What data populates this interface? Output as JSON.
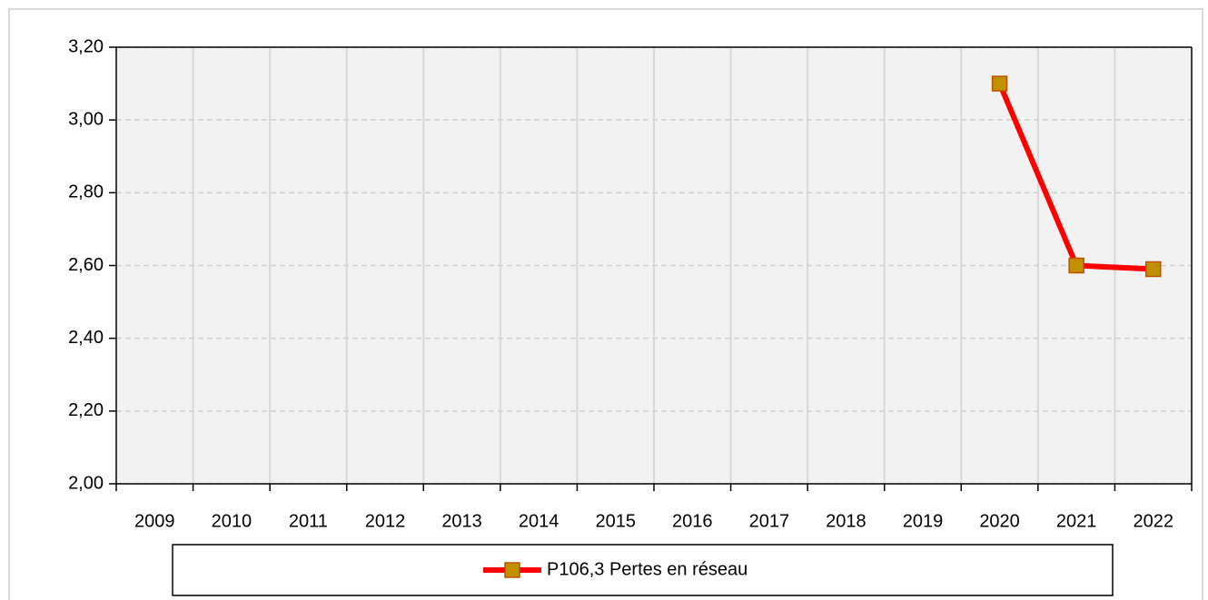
{
  "chart_data": {
    "type": "line",
    "categories": [
      "2009",
      "2010",
      "2011",
      "2012",
      "2013",
      "2014",
      "2015",
      "2016",
      "2017",
      "2018",
      "2019",
      "2020",
      "2021",
      "2022"
    ],
    "series": [
      {
        "name": "P106,3 Pertes en réseau",
        "color": "#ff0000",
        "marker_color": "#c09000",
        "values": [
          null,
          null,
          null,
          null,
          null,
          null,
          null,
          null,
          null,
          null,
          null,
          3.1,
          2.6,
          2.59
        ]
      }
    ],
    "ylim": [
      2.0,
      3.2
    ],
    "yticks": [
      {
        "value": 2.0,
        "label": "2,00"
      },
      {
        "value": 2.2,
        "label": "2,20"
      },
      {
        "value": 2.4,
        "label": "2,40"
      },
      {
        "value": 2.6,
        "label": "2,60"
      },
      {
        "value": 2.8,
        "label": "2,80"
      },
      {
        "value": 3.0,
        "label": "3,00"
      },
      {
        "value": 3.2,
        "label": "3,20"
      }
    ],
    "grid": true,
    "legend": "bottom"
  }
}
